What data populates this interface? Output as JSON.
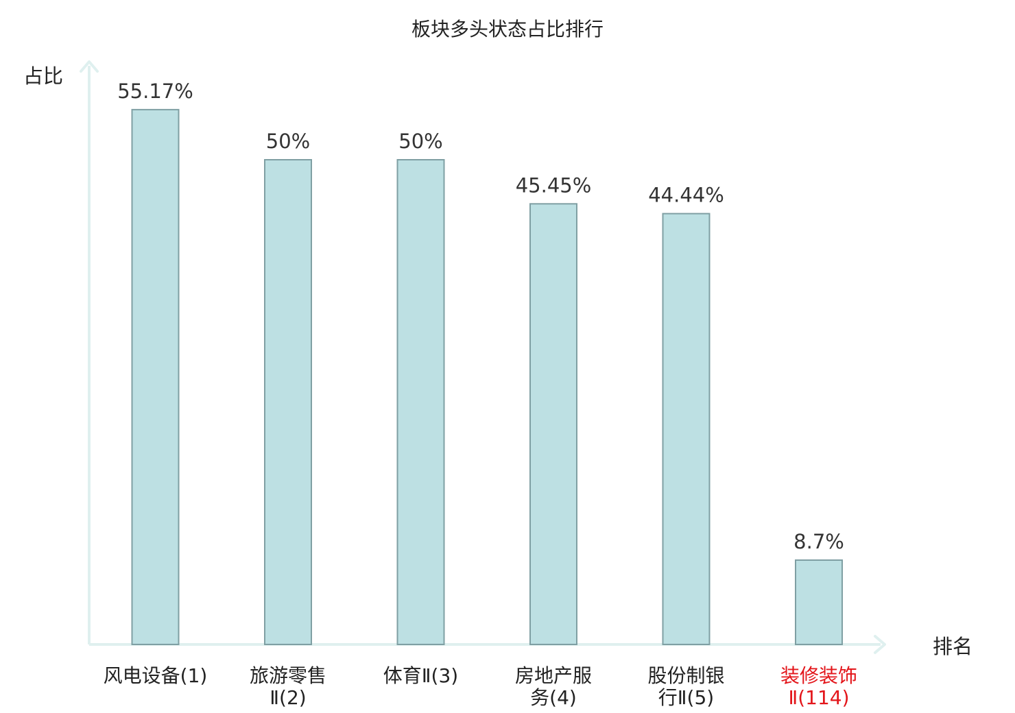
{
  "chart_data": {
    "type": "bar",
    "title": "板块多头状态占比排行",
    "ylabel": "占比",
    "xlabel": "排名",
    "ylim": [
      0,
      60
    ],
    "grid": false,
    "categories": [
      [
        "风电设备(1)"
      ],
      [
        "旅游零售",
        "Ⅱ(2)"
      ],
      [
        "体育Ⅱ(3)"
      ],
      [
        "房地产服",
        "务(4)"
      ],
      [
        "股份制银",
        "行Ⅱ(5)"
      ],
      [
        "装修装饰",
        "Ⅱ(114)"
      ]
    ],
    "values": [
      55.17,
      50,
      50,
      45.45,
      44.44,
      8.7
    ],
    "value_labels": [
      "55.17%",
      "50%",
      "50%",
      "45.45%",
      "44.44%",
      "8.7%"
    ],
    "highlight_index": 5,
    "colors": {
      "bar_fill": "#bde0e3",
      "bar_stroke": "#7f9fa3",
      "axis": "#dff0ef",
      "label_default": "#222222",
      "label_highlight": "#e3151a"
    }
  }
}
